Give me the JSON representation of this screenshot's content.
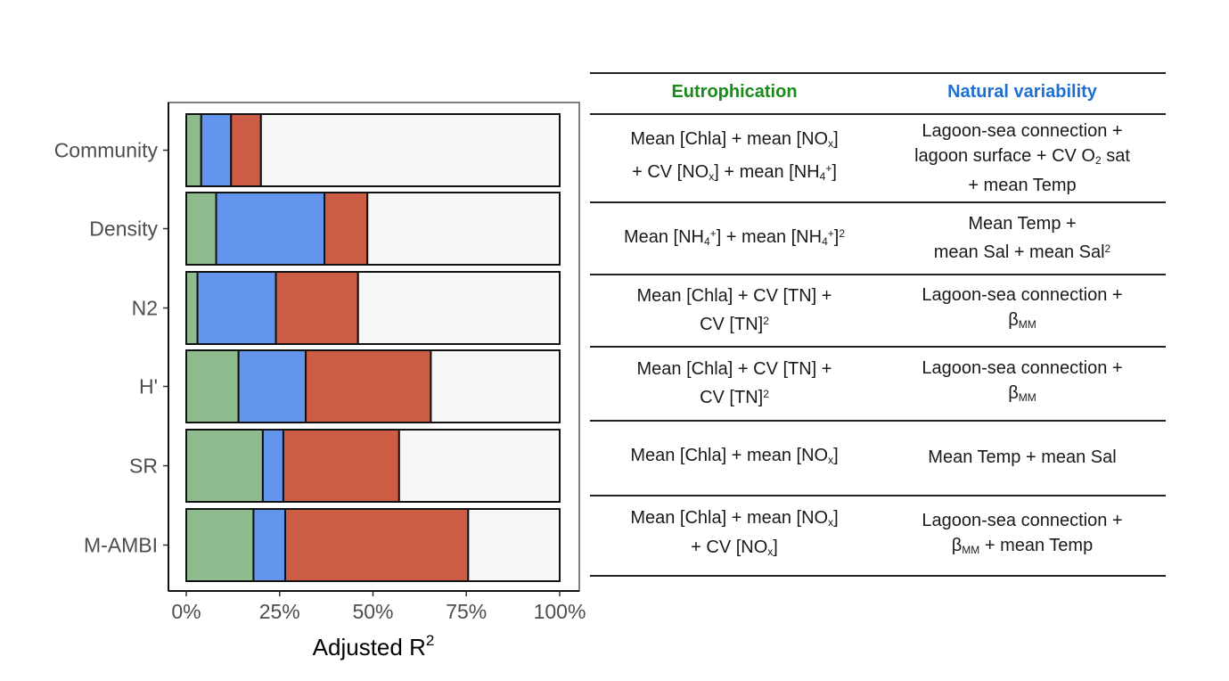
{
  "chart_data": {
    "type": "bar",
    "stacked": true,
    "orientation": "horizontal",
    "categories": [
      "Community",
      "Density",
      "N2",
      "H'",
      "SR",
      "M-AMBI"
    ],
    "series": [
      {
        "values": [
          4,
          8,
          3,
          14,
          20.5,
          18
        ],
        "color": "#8fbc8f"
      },
      {
        "values": [
          8,
          29,
          21,
          18,
          5.5,
          8.5
        ],
        "color": "#6495ed"
      },
      {
        "values": [
          8,
          11.5,
          22,
          33.5,
          31,
          49
        ],
        "color": "#cd5c45"
      },
      {
        "values": [
          80,
          51.5,
          54,
          34.5,
          43,
          24.5
        ],
        "color": "#f7f7f7"
      }
    ],
    "xlim": [
      0,
      100
    ],
    "x_tick_labels": [
      "0%",
      "25%",
      "50%",
      "75%",
      "100%"
    ],
    "xlabel": "Adjusted R",
    "xlabel_superscript": "2",
    "ylabel": "",
    "grid": false,
    "legend": "none"
  },
  "table": {
    "headers": {
      "eutrophication": {
        "text": "Eutrophication",
        "color": "#1a8a1a"
      },
      "natural": {
        "text": "Natural variability",
        "color": "#1f6fd1"
      }
    },
    "rows": [
      {
        "eutro_html": "Mean [Chla] + mean [NO<sub>x</sub>]<br>+ CV [NO<sub>x</sub>] + mean [NH<sub>4</sub><sup>+</sup>]",
        "natural_html": "Lagoon-sea connection +<br>lagoon surface + CV O<sub>2</sub> sat<br>+ mean Temp"
      },
      {
        "eutro_html": "Mean [NH<sub>4</sub><sup>+</sup>] + mean [NH<sub>4</sub><sup>+</sup>]<sup>2</sup>",
        "natural_html": "Mean Temp +<br>mean Sal + mean Sal<sup>2</sup>"
      },
      {
        "eutro_html": "Mean [Chla] + CV [TN] +<br>CV [TN]<sup>2</sup>",
        "natural_html": "Lagoon-sea connection +<br>β<sub>MM</sub>"
      },
      {
        "eutro_html": "Mean [Chla] + CV [TN] +<br>CV [TN]<sup>2</sup>",
        "natural_html": "Lagoon-sea connection +<br>β<sub>MM</sub>"
      },
      {
        "eutro_html": "Mean [Chla] + mean [NO<sub>x</sub>]",
        "natural_html": "Mean Temp + mean Sal"
      },
      {
        "eutro_html": "Mean [Chla] + mean [NO<sub>x</sub>]<br>+ CV [NO<sub>x</sub>]",
        "natural_html": "Lagoon-sea connection +<br>β<sub>MM</sub> + mean Temp"
      }
    ]
  }
}
